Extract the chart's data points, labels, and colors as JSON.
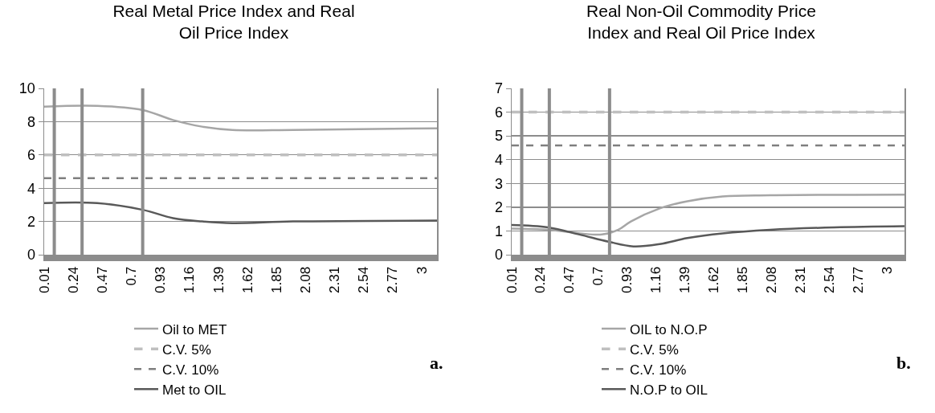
{
  "chart_data": [
    {
      "type": "line",
      "title": "Real Metal Price Index and Real Oil Price Index",
      "xlim": [
        0.01,
        3.12
      ],
      "xticks": [
        0.01,
        0.24,
        0.47,
        0.7,
        0.93,
        1.16,
        1.39,
        1.62,
        1.85,
        2.08,
        2.31,
        2.54,
        2.77,
        3
      ],
      "ylim": [
        0,
        10
      ],
      "yticks": [
        0,
        2,
        4,
        6,
        8,
        10
      ],
      "grid": "y",
      "legend": "bottom",
      "marker": "none",
      "ref_lines": [
        {
          "axis": "x",
          "value": 0.09,
          "color": "#8c8c8c"
        },
        {
          "axis": "x",
          "value": 0.31,
          "color": "#8c8c8c"
        },
        {
          "axis": "x",
          "value": 0.79,
          "color": "#8c8c8c"
        }
      ],
      "annotations": [
        "a."
      ],
      "series": [
        {
          "name": "Oil to MET",
          "color": "#a6a6a6",
          "line_style": "solid",
          "x": [
            0.01,
            0.43,
            0.79,
            1.03,
            1.26,
            1.5,
            1.98,
            3.12
          ],
          "values": [
            8.9,
            8.95,
            8.7,
            8.1,
            7.7,
            7.5,
            7.5,
            7.6
          ]
        },
        {
          "name": "C.V. 5%",
          "color": "#bfbfbf",
          "line_style": "dashed",
          "x": [
            0.01,
            3.12
          ],
          "values": [
            6,
            6
          ]
        },
        {
          "name": "C.V. 10%",
          "color": "#7f7f7f",
          "line_style": "dashed",
          "x": [
            0.01,
            3.12
          ],
          "values": [
            4.6,
            4.6
          ]
        },
        {
          "name": "Met to OIL",
          "color": "#595959",
          "line_style": "solid",
          "x": [
            0.01,
            0.43,
            0.79,
            1.03,
            1.26,
            1.5,
            1.98,
            3.12
          ],
          "values": [
            3.1,
            3.1,
            2.7,
            2.2,
            2,
            1.9,
            2,
            2.05
          ]
        }
      ]
    },
    {
      "type": "line",
      "title": "Real Non-Oil Commodity Price Index and Real Oil Price Index",
      "xlim": [
        0.01,
        3.14
      ],
      "xticks": [
        0.01,
        0.24,
        0.47,
        0.7,
        0.93,
        1.16,
        1.39,
        1.62,
        1.85,
        2.08,
        2.31,
        2.54,
        2.77,
        3
      ],
      "ylim": [
        0,
        7
      ],
      "yticks": [
        0,
        1,
        2,
        3,
        4,
        5,
        6,
        7
      ],
      "grid": "y",
      "legend": "bottom",
      "marker": "none",
      "ref_lines": [
        {
          "axis": "x",
          "value": 0.09,
          "color": "#8c8c8c"
        },
        {
          "axis": "x",
          "value": 0.31,
          "color": "#8c8c8c"
        },
        {
          "axis": "x",
          "value": 0.79,
          "color": "#8c8c8c"
        }
      ],
      "annotations": [
        "b."
      ],
      "series": [
        {
          "name": "OIL to N.O.P",
          "color": "#a6a6a6",
          "line_style": "solid",
          "x": [
            0.01,
            0.3,
            0.55,
            0.73,
            0.86,
            0.96,
            1.19,
            1.41,
            1.69,
            2.07,
            3.14
          ],
          "values": [
            1.1,
            1.05,
            0.9,
            0.85,
            1.05,
            1.4,
            1.95,
            2.25,
            2.45,
            2.5,
            2.53
          ]
        },
        {
          "name": "C.V. 5%",
          "color": "#bfbfbf",
          "line_style": "dashed",
          "x": [
            0.01,
            3.14
          ],
          "values": [
            6,
            6
          ]
        },
        {
          "name": "C.V. 10%",
          "color": "#7f7f7f",
          "line_style": "dashed",
          "x": [
            0.01,
            3.14
          ],
          "values": [
            4.6,
            4.6
          ]
        },
        {
          "name": "N.O.P to OIL",
          "color": "#595959",
          "line_style": "solid",
          "x": [
            0.01,
            0.3,
            0.55,
            0.78,
            0.98,
            1.19,
            1.41,
            1.69,
            2.07,
            2.58,
            3.14
          ],
          "values": [
            1.25,
            1.15,
            0.85,
            0.55,
            0.35,
            0.45,
            0.7,
            0.9,
            1.05,
            1.15,
            1.2
          ]
        }
      ]
    }
  ]
}
